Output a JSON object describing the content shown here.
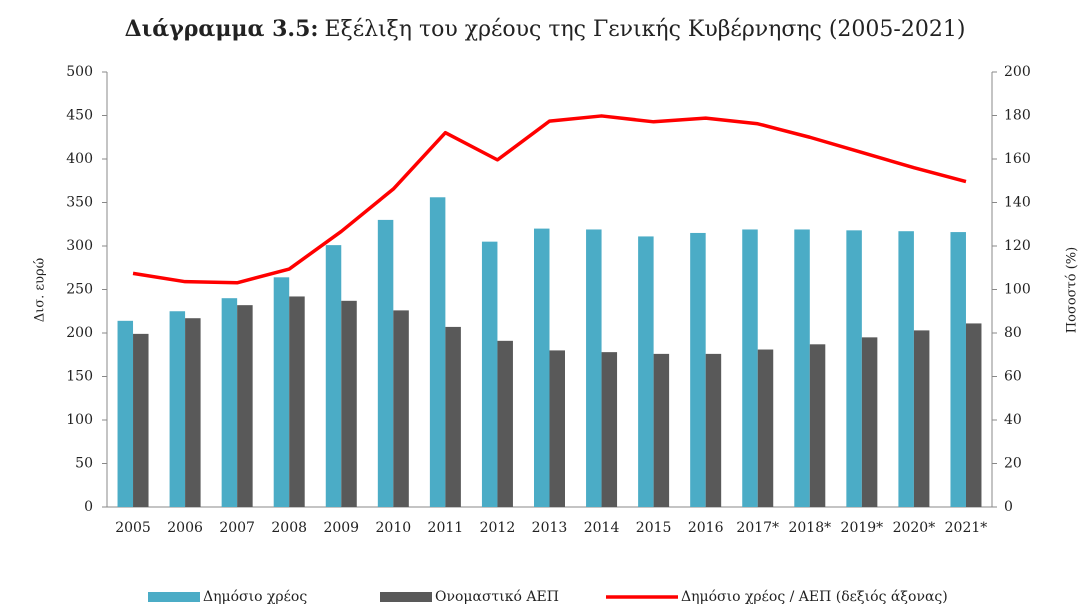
{
  "chart_data": {
    "type": "bar_line",
    "title_prefix": "Διάγραμμα 3.5:",
    "title": "Εξέλιξη του χρέους της Γενικής Κυβέρνησης (2005-2021)",
    "y_label": "Δισ. ευρώ",
    "y2_label": "Ποσοστό (%)",
    "categories": [
      "2005",
      "2006",
      "2007",
      "2008",
      "2009",
      "2010",
      "2011",
      "2012",
      "2013",
      "2014",
      "2015",
      "2016",
      "2017*",
      "2018*",
      "2019*",
      "2020*",
      "2021*"
    ],
    "series": [
      {
        "name": "Δημόσιο χρέος",
        "color": "#4bacc6",
        "type": "bar",
        "values": [
          214,
          225,
          240,
          264,
          301,
          330,
          356,
          305,
          320,
          319,
          311,
          315,
          319,
          319,
          318,
          317,
          316
        ]
      },
      {
        "name": "Ονομαστικό ΑΕΠ",
        "color": "#595959",
        "type": "bar",
        "values": [
          199,
          217,
          232,
          242,
          237,
          226,
          207,
          191,
          180,
          178,
          176,
          176,
          181,
          187,
          195,
          203,
          211
        ]
      },
      {
        "name": "Δημόσιο χρέος / ΑΕΠ (δεξιός άξονας)",
        "color": "#ff0000",
        "type": "line",
        "axis": "y2",
        "values": [
          107.4,
          103.6,
          103.1,
          109.4,
          126.7,
          146.2,
          172.1,
          159.6,
          177.4,
          179.8,
          177.1,
          178.8,
          176.2,
          170,
          163,
          156,
          149.6
        ]
      }
    ],
    "ylim": [
      0,
      500
    ],
    "yticks": [
      0,
      50,
      100,
      150,
      200,
      250,
      300,
      350,
      400,
      450,
      500
    ],
    "y2lim": [
      0,
      200
    ],
    "y2ticks": [
      0,
      20,
      40,
      60,
      80,
      100,
      120,
      140,
      160,
      180,
      200
    ],
    "grid": false,
    "legend": "bottom"
  }
}
